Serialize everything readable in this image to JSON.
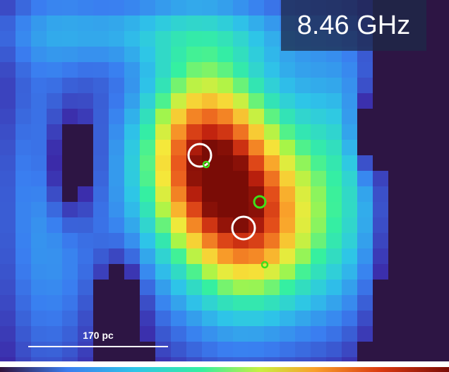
{
  "label": {
    "frequency": "8.46 GHz"
  },
  "scale_bar": {
    "label": "170 pc"
  }
}
